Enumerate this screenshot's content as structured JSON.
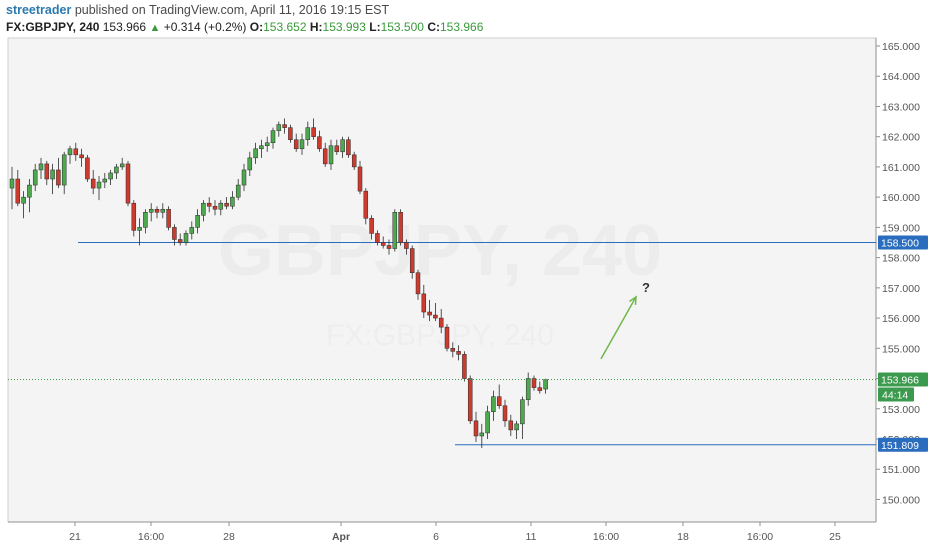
{
  "header": {
    "author": "streetrader",
    "published_text": "published on TradingView.com, April 11, 2016 19:15 EST",
    "symbol": "FX:GBPJPY, 240",
    "last": "153.966",
    "change": "+0.314 (+0.2%)",
    "o_label": "O:",
    "o_value": "153.652",
    "h_label": "H:",
    "h_value": "153.993",
    "l_label": "L:",
    "l_value": "153.500",
    "c_label": "C:",
    "c_value": "153.966"
  },
  "colors": {
    "background": "#f4f4f4",
    "bull": "#4ea84e",
    "bear": "#cc3b2e",
    "hline": "#2a6cbd",
    "price_line": "#3b9a4d",
    "arrow": "#6fb84a",
    "watermark": "#e6e6e6"
  },
  "watermark": {
    "line1": "GBPJPY, 240",
    "line2": "FX:GBPJPY, 240"
  },
  "chart_data": {
    "type": "candlestick",
    "y_ticks": [
      "165.000",
      "164.000",
      "163.000",
      "162.000",
      "161.000",
      "160.000",
      "159.000",
      "158.000",
      "157.000",
      "156.000",
      "155.000",
      "154.000",
      "153.000",
      "152.000",
      "151.000",
      "150.000"
    ],
    "ylim": [
      149.0,
      165.3
    ],
    "x_ticks": [
      "21",
      "16:00",
      "28",
      "Apr",
      "6",
      "11",
      "16:00",
      "18",
      "16:00",
      "25"
    ],
    "horizontal_lines": [
      {
        "label": "158.500",
        "value": 158.5
      },
      {
        "label": "151.809",
        "value": 151.809
      }
    ],
    "last_price": {
      "label": "153.966",
      "value": 153.966,
      "countdown": "44:14"
    },
    "annotation": {
      "text": "?",
      "arrow_from": 154.65,
      "arrow_to": 156.7
    },
    "series": [
      {
        "o": 160.3,
        "h": 161.0,
        "l": 159.6,
        "c": 160.6
      },
      {
        "o": 160.6,
        "h": 160.9,
        "l": 159.7,
        "c": 159.8
      },
      {
        "o": 159.8,
        "h": 160.2,
        "l": 159.3,
        "c": 160.0
      },
      {
        "o": 160.0,
        "h": 160.6,
        "l": 159.5,
        "c": 160.4
      },
      {
        "o": 160.4,
        "h": 161.1,
        "l": 160.2,
        "c": 160.9
      },
      {
        "o": 160.9,
        "h": 161.3,
        "l": 160.6,
        "c": 161.1
      },
      {
        "o": 161.1,
        "h": 161.2,
        "l": 160.4,
        "c": 160.6
      },
      {
        "o": 160.6,
        "h": 161.1,
        "l": 160.1,
        "c": 160.9
      },
      {
        "o": 160.9,
        "h": 161.3,
        "l": 160.3,
        "c": 160.4
      },
      {
        "o": 160.4,
        "h": 161.5,
        "l": 160.1,
        "c": 161.4
      },
      {
        "o": 161.4,
        "h": 161.7,
        "l": 161.1,
        "c": 161.6
      },
      {
        "o": 161.6,
        "h": 161.8,
        "l": 161.2,
        "c": 161.4
      },
      {
        "o": 161.4,
        "h": 161.6,
        "l": 161.0,
        "c": 161.3
      },
      {
        "o": 161.3,
        "h": 161.4,
        "l": 160.5,
        "c": 160.6
      },
      {
        "o": 160.6,
        "h": 160.9,
        "l": 160.1,
        "c": 160.3
      },
      {
        "o": 160.3,
        "h": 160.7,
        "l": 159.9,
        "c": 160.5
      },
      {
        "o": 160.5,
        "h": 160.8,
        "l": 160.3,
        "c": 160.6
      },
      {
        "o": 160.6,
        "h": 160.9,
        "l": 160.4,
        "c": 160.8
      },
      {
        "o": 160.8,
        "h": 161.1,
        "l": 160.6,
        "c": 161.0
      },
      {
        "o": 161.0,
        "h": 161.3,
        "l": 160.9,
        "c": 161.1
      },
      {
        "o": 161.1,
        "h": 161.2,
        "l": 159.7,
        "c": 159.8
      },
      {
        "o": 159.8,
        "h": 159.9,
        "l": 158.7,
        "c": 158.9
      },
      {
        "o": 158.9,
        "h": 159.3,
        "l": 158.4,
        "c": 159.0
      },
      {
        "o": 159.0,
        "h": 159.6,
        "l": 158.8,
        "c": 159.5
      },
      {
        "o": 159.5,
        "h": 159.8,
        "l": 159.2,
        "c": 159.6
      },
      {
        "o": 159.6,
        "h": 159.7,
        "l": 159.3,
        "c": 159.5
      },
      {
        "o": 159.5,
        "h": 159.8,
        "l": 159.3,
        "c": 159.6
      },
      {
        "o": 159.6,
        "h": 159.7,
        "l": 158.9,
        "c": 159.0
      },
      {
        "o": 159.0,
        "h": 159.1,
        "l": 158.4,
        "c": 158.6
      },
      {
        "o": 158.6,
        "h": 158.8,
        "l": 158.4,
        "c": 158.5
      },
      {
        "o": 158.5,
        "h": 158.9,
        "l": 158.4,
        "c": 158.8
      },
      {
        "o": 158.8,
        "h": 159.2,
        "l": 158.6,
        "c": 159.0
      },
      {
        "o": 159.0,
        "h": 159.6,
        "l": 158.8,
        "c": 159.4
      },
      {
        "o": 159.4,
        "h": 159.9,
        "l": 159.2,
        "c": 159.8
      },
      {
        "o": 159.8,
        "h": 160.0,
        "l": 159.5,
        "c": 159.7
      },
      {
        "o": 159.7,
        "h": 159.9,
        "l": 159.4,
        "c": 159.6
      },
      {
        "o": 159.6,
        "h": 159.9,
        "l": 159.4,
        "c": 159.8
      },
      {
        "o": 159.8,
        "h": 160.0,
        "l": 159.6,
        "c": 159.7
      },
      {
        "o": 159.7,
        "h": 160.2,
        "l": 159.6,
        "c": 160.0
      },
      {
        "o": 160.0,
        "h": 160.6,
        "l": 159.9,
        "c": 160.4
      },
      {
        "o": 160.4,
        "h": 161.1,
        "l": 160.2,
        "c": 160.9
      },
      {
        "o": 160.9,
        "h": 161.5,
        "l": 160.7,
        "c": 161.3
      },
      {
        "o": 161.3,
        "h": 161.8,
        "l": 161.1,
        "c": 161.6
      },
      {
        "o": 161.6,
        "h": 161.9,
        "l": 161.3,
        "c": 161.7
      },
      {
        "o": 161.7,
        "h": 162.0,
        "l": 161.5,
        "c": 161.8
      },
      {
        "o": 161.8,
        "h": 162.3,
        "l": 161.6,
        "c": 162.2
      },
      {
        "o": 162.2,
        "h": 162.5,
        "l": 162.0,
        "c": 162.4
      },
      {
        "o": 162.4,
        "h": 162.6,
        "l": 162.1,
        "c": 162.3
      },
      {
        "o": 162.3,
        "h": 162.4,
        "l": 161.8,
        "c": 161.9
      },
      {
        "o": 161.9,
        "h": 162.1,
        "l": 161.5,
        "c": 161.6
      },
      {
        "o": 161.6,
        "h": 162.1,
        "l": 161.4,
        "c": 161.9
      },
      {
        "o": 161.9,
        "h": 162.5,
        "l": 161.7,
        "c": 162.3
      },
      {
        "o": 162.3,
        "h": 162.6,
        "l": 161.9,
        "c": 162.0
      },
      {
        "o": 162.0,
        "h": 162.2,
        "l": 161.5,
        "c": 161.6
      },
      {
        "o": 161.6,
        "h": 161.8,
        "l": 161.0,
        "c": 161.1
      },
      {
        "o": 161.1,
        "h": 161.9,
        "l": 160.9,
        "c": 161.7
      },
      {
        "o": 161.7,
        "h": 161.9,
        "l": 161.4,
        "c": 161.5
      },
      {
        "o": 161.5,
        "h": 162.0,
        "l": 161.3,
        "c": 161.9
      },
      {
        "o": 161.9,
        "h": 162.0,
        "l": 161.3,
        "c": 161.4
      },
      {
        "o": 161.4,
        "h": 161.5,
        "l": 160.9,
        "c": 161.0
      },
      {
        "o": 161.0,
        "h": 161.2,
        "l": 160.1,
        "c": 160.2
      },
      {
        "o": 160.2,
        "h": 160.3,
        "l": 159.1,
        "c": 159.3
      },
      {
        "o": 159.3,
        "h": 159.4,
        "l": 158.6,
        "c": 158.8
      },
      {
        "o": 158.8,
        "h": 158.9,
        "l": 158.4,
        "c": 158.5
      },
      {
        "o": 158.5,
        "h": 158.7,
        "l": 158.3,
        "c": 158.4
      },
      {
        "o": 158.4,
        "h": 158.6,
        "l": 158.1,
        "c": 158.3
      },
      {
        "o": 158.3,
        "h": 159.6,
        "l": 158.2,
        "c": 159.5
      },
      {
        "o": 159.5,
        "h": 159.6,
        "l": 158.4,
        "c": 158.5
      },
      {
        "o": 158.5,
        "h": 158.6,
        "l": 158.1,
        "c": 158.3
      },
      {
        "o": 158.3,
        "h": 158.4,
        "l": 157.3,
        "c": 157.5
      },
      {
        "o": 157.5,
        "h": 157.6,
        "l": 156.6,
        "c": 156.8
      },
      {
        "o": 156.8,
        "h": 157.1,
        "l": 156.0,
        "c": 156.2
      },
      {
        "o": 156.2,
        "h": 156.6,
        "l": 155.9,
        "c": 156.1
      },
      {
        "o": 156.1,
        "h": 156.5,
        "l": 155.9,
        "c": 156.0
      },
      {
        "o": 156.0,
        "h": 156.3,
        "l": 155.5,
        "c": 155.7
      },
      {
        "o": 155.7,
        "h": 155.8,
        "l": 154.9,
        "c": 155.0
      },
      {
        "o": 155.0,
        "h": 155.2,
        "l": 154.7,
        "c": 154.9
      },
      {
        "o": 154.9,
        "h": 155.1,
        "l": 154.6,
        "c": 154.8
      },
      {
        "o": 154.8,
        "h": 154.9,
        "l": 153.9,
        "c": 154.0
      },
      {
        "o": 154.0,
        "h": 154.1,
        "l": 152.5,
        "c": 152.6
      },
      {
        "o": 152.6,
        "h": 152.9,
        "l": 151.9,
        "c": 152.1
      },
      {
        "o": 152.1,
        "h": 152.5,
        "l": 151.7,
        "c": 152.2
      },
      {
        "o": 152.2,
        "h": 153.1,
        "l": 152.0,
        "c": 152.9
      },
      {
        "o": 152.9,
        "h": 153.6,
        "l": 152.6,
        "c": 153.4
      },
      {
        "o": 153.4,
        "h": 153.8,
        "l": 153.0,
        "c": 153.1
      },
      {
        "o": 153.1,
        "h": 153.3,
        "l": 152.4,
        "c": 152.6
      },
      {
        "o": 152.6,
        "h": 152.8,
        "l": 152.1,
        "c": 152.3
      },
      {
        "o": 152.3,
        "h": 152.6,
        "l": 152.0,
        "c": 152.5
      },
      {
        "o": 152.5,
        "h": 153.4,
        "l": 152.0,
        "c": 153.3
      },
      {
        "o": 153.3,
        "h": 154.2,
        "l": 153.1,
        "c": 154.0
      },
      {
        "o": 154.0,
        "h": 154.1,
        "l": 153.6,
        "c": 153.7
      },
      {
        "o": 153.7,
        "h": 153.9,
        "l": 153.5,
        "c": 153.6
      },
      {
        "o": 153.652,
        "h": 153.993,
        "l": 153.5,
        "c": 153.966
      }
    ]
  }
}
